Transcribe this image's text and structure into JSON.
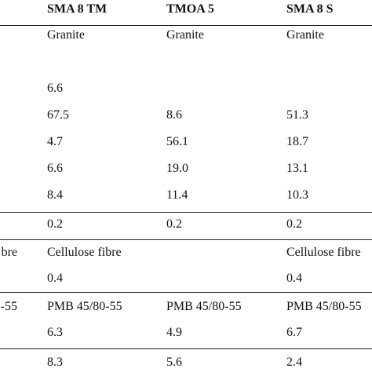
{
  "table": {
    "header": [
      null,
      "SMA 8 TM",
      "TMOA 5",
      "SMA 8 S"
    ],
    "rows": [
      [
        null,
        "Granite",
        "Granite",
        "Granite"
      ],
      [
        null,
        null,
        null,
        null
      ],
      [
        null,
        "6.6",
        null,
        null
      ],
      [
        null,
        "67.5",
        "8.6",
        "51.3"
      ],
      [
        null,
        "4.7",
        "56.1",
        "18.7"
      ],
      [
        null,
        "6.6",
        "19.0",
        "13.1"
      ],
      [
        null,
        "8.4",
        "11.4",
        "10.3"
      ],
      [
        null,
        "0.2",
        "0.2",
        "0.2"
      ],
      [
        "bre",
        "Cellulose fibre",
        null,
        "Cellulose fibre"
      ],
      [
        null,
        "0.4",
        null,
        "0.4"
      ],
      [
        "-55",
        "PMB 45/80-55",
        "PMB 45/80-55",
        "PMB 45/80-55"
      ],
      [
        null,
        "6.3",
        "4.9",
        "6.7"
      ],
      [
        null,
        "8.3",
        "5.6",
        "2.4"
      ]
    ]
  }
}
